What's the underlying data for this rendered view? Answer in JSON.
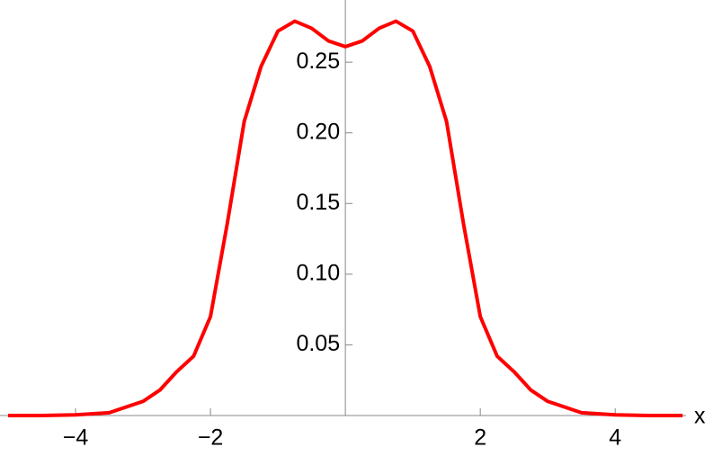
{
  "chart_data": {
    "type": "line",
    "xlabel": "x",
    "x": [
      -5,
      -4.5,
      -4,
      -3.5,
      -3,
      -2.75,
      -2.5,
      -2.25,
      -2,
      -1.75,
      -1.5,
      -1.25,
      -1,
      -0.75,
      -0.5,
      -0.25,
      0,
      0.25,
      0.5,
      0.75,
      1,
      1.25,
      1.5,
      1.75,
      2,
      2.25,
      2.5,
      2.75,
      3,
      3.5,
      4,
      4.5,
      5
    ],
    "series": [
      {
        "color": "#ff0000",
        "values": [
          0,
          0,
          0.0005,
          0.002,
          0.01,
          0.018,
          0.031,
          0.042,
          0.07,
          0.136,
          0.208,
          0.247,
          0.272,
          0.279,
          0.274,
          0.265,
          0.261,
          0.265,
          0.274,
          0.279,
          0.272,
          0.247,
          0.208,
          0.136,
          0.07,
          0.042,
          0.031,
          0.018,
          0.01,
          0.002,
          0.0005,
          0,
          0
        ]
      }
    ],
    "xlim": [
      -5.12,
      5.05
    ],
    "ylim": [
      0,
      0.294
    ],
    "xticks": [
      {
        "value": -4,
        "label": "−4"
      },
      {
        "value": -2,
        "label": "−2"
      },
      2,
      4
    ],
    "yticks": [
      0.05,
      {
        "value": 0.1,
        "label": "0.10"
      },
      0.15,
      {
        "value": 0.2,
        "label": "0.20"
      },
      0.25
    ]
  }
}
